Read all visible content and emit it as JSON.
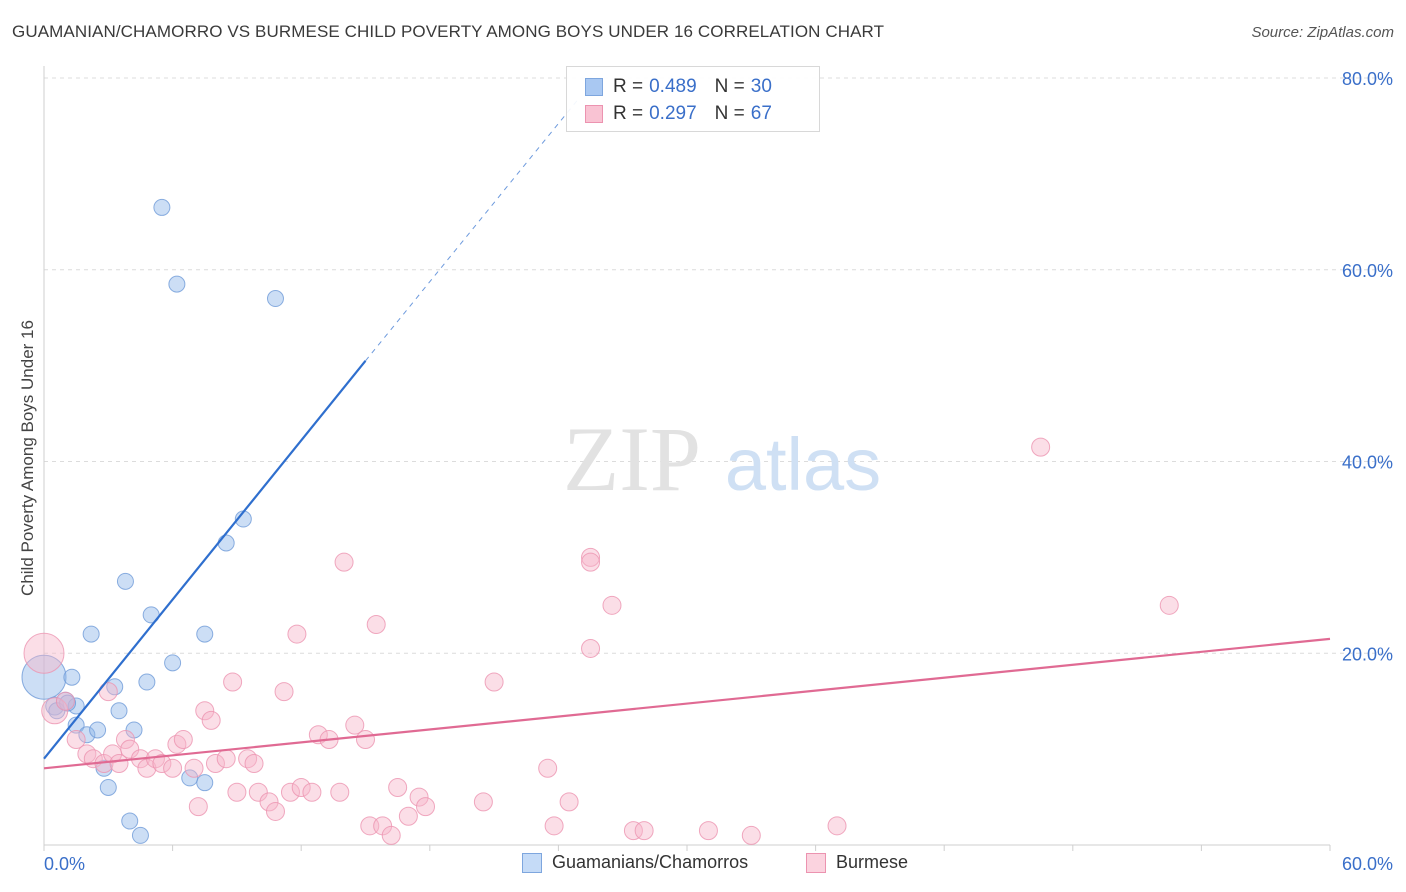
{
  "title": "GUAMANIAN/CHAMORRO VS BURMESE CHILD POVERTY AMONG BOYS UNDER 16 CORRELATION CHART",
  "source": "Source: ZipAtlas.com",
  "watermark": {
    "zip": "ZIP",
    "atlas": "atlas"
  },
  "stats": [
    {
      "r_label": "R =",
      "r": "0.489",
      "n_label": "N =",
      "n": "30",
      "color": "#a9c8f2",
      "border": "#7ea6de"
    },
    {
      "r_label": "R =",
      "r": "0.297",
      "n_label": "N =",
      "n": "67",
      "color": "#f9c3d3",
      "border": "#ec93b0"
    }
  ],
  "legend": [
    {
      "label": "Guamanians/Chamorros",
      "color": "#c5dbf7",
      "border": "#7ea6de"
    },
    {
      "label": "Burmese",
      "color": "#fbd3df",
      "border": "#ec93b0"
    }
  ],
  "chart_data": {
    "type": "scatter",
    "title": "GUAMANIAN/CHAMORRO VS BURMESE CHILD POVERTY AMONG BOYS UNDER 16 CORRELATION CHART",
    "xlabel": "",
    "ylabel": "Child Poverty Among Boys Under 16",
    "xlim": [
      0,
      60
    ],
    "ylim": [
      0,
      80
    ],
    "x_tick_labels": [
      {
        "value": 0,
        "label": "0.0%"
      },
      {
        "value": 60,
        "label": "60.0%"
      }
    ],
    "y_tick_labels": [
      {
        "value": 20,
        "label": "20.0%"
      },
      {
        "value": 40,
        "label": "40.0%"
      },
      {
        "value": 60,
        "label": "60.0%"
      },
      {
        "value": 80,
        "label": "80.0%"
      }
    ],
    "series": [
      {
        "name": "Guamanians/Chamorros",
        "color": "#8fb5e8",
        "stroke": "#6f9bd8",
        "trend": {
          "x0": 0,
          "y0": 9.0,
          "x1": 15.0,
          "y1": 50.5,
          "dash_to_x": 25.0,
          "dash_to_y": 78.0,
          "color": "#2f6fce"
        },
        "points": [
          [
            0.0,
            17.5,
            22
          ],
          [
            0.5,
            14.5,
            9
          ],
          [
            1.0,
            15.0,
            9
          ],
          [
            1.3,
            17.5,
            8
          ],
          [
            1.5,
            12.5,
            8
          ],
          [
            1.5,
            14.5,
            8
          ],
          [
            2.0,
            11.5,
            8
          ],
          [
            2.2,
            22.0,
            8
          ],
          [
            2.5,
            12.0,
            8
          ],
          [
            2.8,
            8.0,
            8
          ],
          [
            3.0,
            6.0,
            8
          ],
          [
            3.3,
            16.5,
            8
          ],
          [
            3.5,
            14.0,
            8
          ],
          [
            3.8,
            27.5,
            8
          ],
          [
            4.0,
            2.5,
            8
          ],
          [
            4.2,
            12.0,
            8
          ],
          [
            4.5,
            1.0,
            8
          ],
          [
            4.8,
            17.0,
            8
          ],
          [
            5.0,
            24.0,
            8
          ],
          [
            5.5,
            66.5,
            8
          ],
          [
            6.0,
            19.0,
            8
          ],
          [
            6.2,
            58.5,
            8
          ],
          [
            6.8,
            7.0,
            8
          ],
          [
            7.5,
            6.5,
            8
          ],
          [
            7.5,
            22.0,
            8
          ],
          [
            8.5,
            31.5,
            8
          ],
          [
            9.3,
            34.0,
            8
          ],
          [
            10.8,
            57.0,
            8
          ],
          [
            0.6,
            14.0,
            8
          ],
          [
            1.1,
            14.8,
            8
          ]
        ]
      },
      {
        "name": "Burmese",
        "color": "#f7b6c9",
        "stroke": "#ec93b0",
        "trend": {
          "x0": 0,
          "y0": 8.0,
          "x1": 60,
          "y1": 21.5,
          "color": "#e06a93"
        },
        "points": [
          [
            0.0,
            20.0,
            20
          ],
          [
            0.5,
            14.0,
            13
          ],
          [
            1.0,
            15.0,
            9
          ],
          [
            1.5,
            11.0,
            9
          ],
          [
            2.0,
            9.5,
            9
          ],
          [
            2.3,
            9.0,
            9
          ],
          [
            2.8,
            8.5,
            9
          ],
          [
            3.0,
            16.0,
            9
          ],
          [
            3.2,
            9.5,
            9
          ],
          [
            3.5,
            8.5,
            9
          ],
          [
            3.8,
            11.0,
            9
          ],
          [
            4.0,
            10.0,
            9
          ],
          [
            4.5,
            9.0,
            9
          ],
          [
            4.8,
            8.0,
            9
          ],
          [
            5.2,
            9.0,
            9
          ],
          [
            5.5,
            8.5,
            9
          ],
          [
            6.0,
            8.0,
            9
          ],
          [
            6.2,
            10.5,
            9
          ],
          [
            6.5,
            11.0,
            9
          ],
          [
            7.0,
            8.0,
            9
          ],
          [
            7.2,
            4.0,
            9
          ],
          [
            7.5,
            14.0,
            9
          ],
          [
            7.8,
            13.0,
            9
          ],
          [
            8.0,
            8.5,
            9
          ],
          [
            8.5,
            9.0,
            9
          ],
          [
            8.8,
            17.0,
            9
          ],
          [
            9.0,
            5.5,
            9
          ],
          [
            9.5,
            9.0,
            9
          ],
          [
            9.8,
            8.5,
            9
          ],
          [
            10.0,
            5.5,
            9
          ],
          [
            10.5,
            4.5,
            9
          ],
          [
            10.8,
            3.5,
            9
          ],
          [
            11.2,
            16.0,
            9
          ],
          [
            11.5,
            5.5,
            9
          ],
          [
            11.8,
            22.0,
            9
          ],
          [
            12.0,
            6.0,
            9
          ],
          [
            12.5,
            5.5,
            9
          ],
          [
            12.8,
            11.5,
            9
          ],
          [
            13.3,
            11.0,
            9
          ],
          [
            13.8,
            5.5,
            9
          ],
          [
            14.0,
            29.5,
            9
          ],
          [
            14.5,
            12.5,
            9
          ],
          [
            15.0,
            11.0,
            9
          ],
          [
            15.2,
            2.0,
            9
          ],
          [
            15.5,
            23.0,
            9
          ],
          [
            15.8,
            2.0,
            9
          ],
          [
            16.2,
            1.0,
            9
          ],
          [
            16.5,
            6.0,
            9
          ],
          [
            17.0,
            3.0,
            9
          ],
          [
            17.5,
            5.0,
            9
          ],
          [
            17.8,
            4.0,
            9
          ],
          [
            20.5,
            4.5,
            9
          ],
          [
            21.0,
            17.0,
            9
          ],
          [
            23.5,
            8.0,
            9
          ],
          [
            23.8,
            2.0,
            9
          ],
          [
            24.5,
            4.5,
            9
          ],
          [
            25.5,
            20.5,
            9
          ],
          [
            25.5,
            30.0,
            9
          ],
          [
            25.5,
            29.5,
            9
          ],
          [
            26.5,
            25.0,
            9
          ],
          [
            27.5,
            1.5,
            9
          ],
          [
            28.0,
            1.5,
            9
          ],
          [
            31.0,
            1.5,
            9
          ],
          [
            33.0,
            1.0,
            9
          ],
          [
            37.0,
            2.0,
            9
          ],
          [
            46.5,
            41.5,
            9
          ],
          [
            52.5,
            25.0,
            9
          ]
        ]
      }
    ]
  }
}
